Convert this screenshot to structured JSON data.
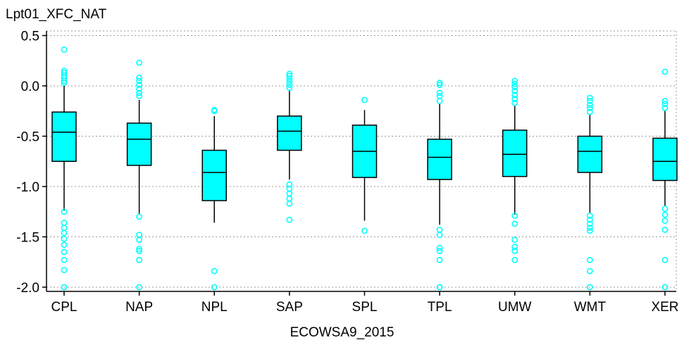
{
  "chart_data": {
    "type": "boxplot",
    "ylabel": "Lpt01_XFC_NAT",
    "xlabel": "ECOWSA9_2015",
    "ylim": [
      -2.05,
      0.55
    ],
    "yticks": [
      0.5,
      0.0,
      -0.5,
      -1.0,
      -1.5,
      -2.0
    ],
    "ytick_labels": [
      "0.5",
      "0.0",
      "-0.5",
      "-1.0",
      "-1.5",
      "-2.0"
    ],
    "grid": true,
    "categories": [
      "CPL",
      "NAP",
      "NPL",
      "SAP",
      "SPL",
      "TPL",
      "UMW",
      "WMT",
      "XER"
    ],
    "boxes": [
      {
        "name": "CPL",
        "whisker_low": -1.24,
        "q1": -0.75,
        "median": -0.46,
        "q3": -0.26,
        "whisker_high": 0.0,
        "outliers": [
          0.36,
          0.15,
          0.13,
          0.1,
          0.08,
          0.05,
          0.03,
          -1.25,
          -1.36,
          -1.41,
          -1.46,
          -1.52,
          -1.58,
          -1.65,
          -1.73,
          -1.83,
          -2.0
        ]
      },
      {
        "name": "NAP",
        "whisker_low": -1.27,
        "q1": -0.79,
        "median": -0.53,
        "q3": -0.37,
        "whisker_high": -0.14,
        "outliers": [
          0.23,
          0.08,
          0.05,
          0.01,
          -0.03,
          -0.07,
          -0.1,
          -1.3,
          -1.48,
          -1.53,
          -1.62,
          -1.64,
          -1.73,
          -2.0
        ]
      },
      {
        "name": "NPL",
        "whisker_low": -1.36,
        "q1": -1.14,
        "median": -0.86,
        "q3": -0.64,
        "whisker_high": -0.3,
        "outliers": [
          -0.25,
          -0.24,
          -1.84,
          -2.0
        ]
      },
      {
        "name": "SAP",
        "whisker_low": -0.93,
        "q1": -0.64,
        "median": -0.45,
        "q3": -0.3,
        "whisker_high": -0.05,
        "outliers": [
          0.12,
          0.1,
          0.07,
          0.04,
          0.01,
          -0.02,
          -0.98,
          -1.02,
          -1.07,
          -1.12,
          -1.17,
          -1.33
        ]
      },
      {
        "name": "SPL",
        "whisker_low": -1.34,
        "q1": -0.91,
        "median": -0.65,
        "q3": -0.39,
        "whisker_high": -0.24,
        "outliers": [
          -0.14,
          -1.44
        ]
      },
      {
        "name": "TPL",
        "whisker_low": -1.38,
        "q1": -0.93,
        "median": -0.71,
        "q3": -0.53,
        "whisker_high": -0.18,
        "outliers": [
          0.03,
          0.01,
          -0.07,
          -0.1,
          -0.15,
          -1.43,
          -1.48,
          -1.61,
          -1.64,
          -1.73,
          -2.0
        ]
      },
      {
        "name": "UMW",
        "whisker_low": -1.28,
        "q1": -0.9,
        "median": -0.68,
        "q3": -0.44,
        "whisker_high": -0.2,
        "outliers": [
          0.05,
          0.02,
          -0.01,
          -0.05,
          -0.09,
          -0.13,
          -0.17,
          -1.29,
          -1.37,
          -1.53,
          -1.6,
          -1.64,
          -1.73
        ]
      },
      {
        "name": "WMT",
        "whisker_low": -1.27,
        "q1": -0.86,
        "median": -0.65,
        "q3": -0.5,
        "whisker_high": -0.29,
        "outliers": [
          -0.12,
          -0.15,
          -0.19,
          -0.22,
          -0.26,
          -1.29,
          -1.33,
          -1.37,
          -1.41,
          -1.44,
          -1.73,
          -1.84,
          -2.0
        ]
      },
      {
        "name": "XER",
        "whisker_low": -1.2,
        "q1": -0.94,
        "median": -0.75,
        "q3": -0.52,
        "whisker_high": -0.24,
        "outliers": [
          0.14,
          -0.15,
          -0.18,
          -0.22,
          -1.22,
          -1.28,
          -1.34,
          -1.43,
          -1.73,
          -2.0
        ]
      }
    ],
    "colors": {
      "box_fill": "#00ffff",
      "outlier": "#00ffff",
      "line": "#000000",
      "grid": "#999999"
    }
  }
}
